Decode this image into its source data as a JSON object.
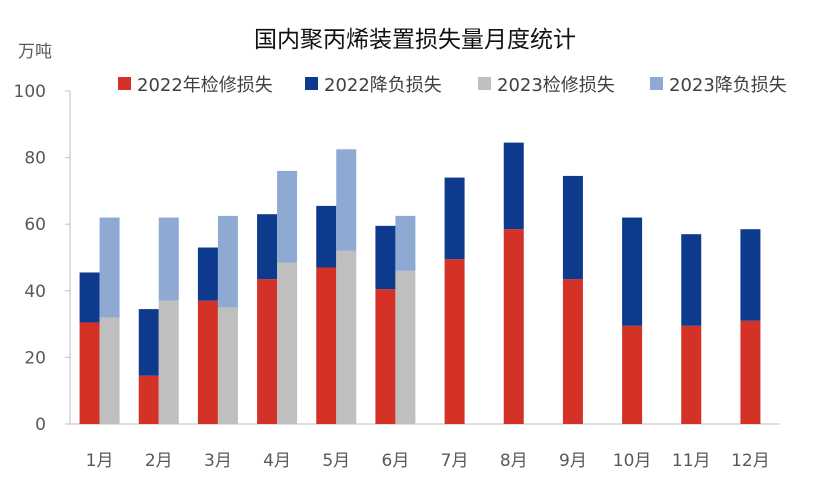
{
  "chart_data": {
    "type": "bar",
    "stacked": true,
    "title": "国内聚丙烯装置损失量月度统计",
    "y_unit_label": "万吨",
    "ylim": [
      0,
      100
    ],
    "y_ticks": [
      0,
      20,
      40,
      60,
      80,
      100
    ],
    "grid": false,
    "legend_position": "top",
    "categories": [
      "1月",
      "2月",
      "3月",
      "4月",
      "5月",
      "6月",
      "7月",
      "8月",
      "9月",
      "10月",
      "11月",
      "12月"
    ],
    "groups": [
      {
        "group": "2022",
        "series": [
          {
            "name": "2022年检修损失",
            "color": "#d43127",
            "values": [
              30.5,
              14.5,
              37,
              43.5,
              47,
              40.5,
              49.5,
              58.5,
              43.5,
              29.5,
              29.5,
              31
            ]
          },
          {
            "name": "2022降负损失",
            "color": "#0d3a8c",
            "values": [
              15,
              20,
              16,
              19.5,
              18.5,
              19,
              24.5,
              26,
              31,
              32.5,
              27.5,
              27.5
            ]
          }
        ]
      },
      {
        "group": "2023",
        "series": [
          {
            "name": "2023检修损失",
            "color": "#bfbfbf",
            "values": [
              32,
              37,
              35,
              48.5,
              52,
              46,
              null,
              null,
              null,
              null,
              null,
              null
            ]
          },
          {
            "name": "2023降负损失",
            "color": "#8eaad3",
            "values": [
              30,
              25,
              27.5,
              27.5,
              30.5,
              16.5,
              null,
              null,
              null,
              null,
              null,
              null
            ]
          }
        ]
      }
    ]
  }
}
